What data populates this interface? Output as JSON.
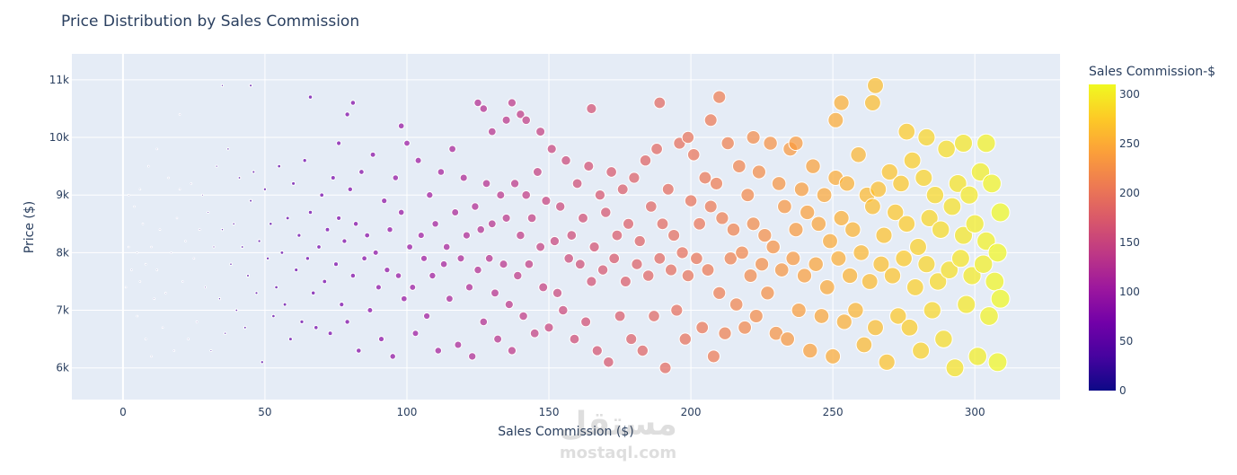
{
  "chart_data": {
    "type": "scatter",
    "title": "Price Distribution by Sales Commission",
    "xlabel": "Sales Commission ($)",
    "ylabel": "Price ($)",
    "xlim": [
      -18,
      330
    ],
    "ylim": [
      5450,
      11450
    ],
    "x_ticks": [
      0,
      50,
      100,
      150,
      200,
      250,
      300
    ],
    "y_ticks": [
      {
        "value": 6000,
        "label": "6k"
      },
      {
        "value": 7000,
        "label": "7k"
      },
      {
        "value": 8000,
        "label": "8k"
      },
      {
        "value": 9000,
        "label": "9k"
      },
      {
        "value": 10000,
        "label": "10k"
      },
      {
        "value": 11000,
        "label": "11k"
      }
    ],
    "grid": true,
    "colorscale_name": "Plasma",
    "colorscale": [
      "#0d0887",
      "#46039f",
      "#7201a8",
      "#9c179e",
      "#bd3786",
      "#d8576b",
      "#ed7953",
      "#fb9f3a",
      "#fdca26",
      "#f0f921"
    ],
    "colorbar": {
      "title": "Sales Commission-$",
      "range": [
        0,
        310
      ],
      "ticks": [
        0,
        50,
        100,
        150,
        200,
        250,
        300
      ]
    },
    "marker_size_encodes": "Sales Commission",
    "points": [
      [
        1,
        7400
      ],
      [
        2,
        8100
      ],
      [
        2,
        9000
      ],
      [
        3,
        7700
      ],
      [
        4,
        8800
      ],
      [
        5,
        6900
      ],
      [
        5,
        8000
      ],
      [
        6,
        9100
      ],
      [
        6,
        7500
      ],
      [
        7,
        8500
      ],
      [
        8,
        7800
      ],
      [
        8,
        6500
      ],
      [
        9,
        9500
      ],
      [
        10,
        6200
      ],
      [
        10,
        8100
      ],
      [
        11,
        7200
      ],
      [
        12,
        9800
      ],
      [
        12,
        7700
      ],
      [
        13,
        8400
      ],
      [
        14,
        6700
      ],
      [
        15,
        7300
      ],
      [
        16,
        9300
      ],
      [
        17,
        8000
      ],
      [
        18,
        6300
      ],
      [
        19,
        8600
      ],
      [
        20,
        9100
      ],
      [
        20,
        10400
      ],
      [
        21,
        7500
      ],
      [
        22,
        8200
      ],
      [
        23,
        6500
      ],
      [
        24,
        9200
      ],
      [
        25,
        7900
      ],
      [
        26,
        6800
      ],
      [
        27,
        8400
      ],
      [
        28,
        9000
      ],
      [
        29,
        7400
      ],
      [
        30,
        8700
      ],
      [
        31,
        6300
      ],
      [
        32,
        8100
      ],
      [
        33,
        9500
      ],
      [
        34,
        7200
      ],
      [
        35,
        10900
      ],
      [
        35,
        8400
      ],
      [
        36,
        6600
      ],
      [
        37,
        9800
      ],
      [
        38,
        7800
      ],
      [
        39,
        8500
      ],
      [
        40,
        7000
      ],
      [
        41,
        9300
      ],
      [
        42,
        8100
      ],
      [
        43,
        6700
      ],
      [
        44,
        7600
      ],
      [
        45,
        10900
      ],
      [
        45,
        8900
      ],
      [
        46,
        9400
      ],
      [
        47,
        7300
      ],
      [
        48,
        8200
      ],
      [
        49,
        6100
      ],
      [
        50,
        9100
      ],
      [
        51,
        7900
      ],
      [
        52,
        8500
      ],
      [
        53,
        6900
      ],
      [
        54,
        7400
      ],
      [
        55,
        9500
      ],
      [
        56,
        8000
      ],
      [
        57,
        7100
      ],
      [
        58,
        8600
      ],
      [
        59,
        6500
      ],
      [
        60,
        9200
      ],
      [
        61,
        7700
      ],
      [
        62,
        8300
      ],
      [
        63,
        6800
      ],
      [
        64,
        9600
      ],
      [
        65,
        7900
      ],
      [
        66,
        10700
      ],
      [
        66,
        8700
      ],
      [
        67,
        7300
      ],
      [
        68,
        6700
      ],
      [
        69,
        8100
      ],
      [
        70,
        9000
      ],
      [
        71,
        7500
      ],
      [
        72,
        8400
      ],
      [
        73,
        6600
      ],
      [
        74,
        9300
      ],
      [
        75,
        7800
      ],
      [
        76,
        9900
      ],
      [
        76,
        8600
      ],
      [
        77,
        7100
      ],
      [
        78,
        8200
      ],
      [
        79,
        10400
      ],
      [
        79,
        6800
      ],
      [
        80,
        9100
      ],
      [
        81,
        10600
      ],
      [
        81,
        7600
      ],
      [
        82,
        8500
      ],
      [
        83,
        6300
      ],
      [
        84,
        9400
      ],
      [
        85,
        7900
      ],
      [
        86,
        8300
      ],
      [
        87,
        7000
      ],
      [
        88,
        9700
      ],
      [
        89,
        8000
      ],
      [
        90,
        7400
      ],
      [
        91,
        6500
      ],
      [
        92,
        8900
      ],
      [
        93,
        7700
      ],
      [
        94,
        8400
      ],
      [
        95,
        6200
      ],
      [
        96,
        9300
      ],
      [
        97,
        7600
      ],
      [
        98,
        10200
      ],
      [
        98,
        8700
      ],
      [
        99,
        7200
      ],
      [
        100,
        9900
      ],
      [
        101,
        8100
      ],
      [
        102,
        7400
      ],
      [
        103,
        6600
      ],
      [
        104,
        9600
      ],
      [
        105,
        8300
      ],
      [
        106,
        7900
      ],
      [
        107,
        6900
      ],
      [
        108,
        9000
      ],
      [
        109,
        7600
      ],
      [
        110,
        8500
      ],
      [
        111,
        6300
      ],
      [
        112,
        9400
      ],
      [
        113,
        7800
      ],
      [
        114,
        8100
      ],
      [
        115,
        7200
      ],
      [
        116,
        9800
      ],
      [
        117,
        8700
      ],
      [
        118,
        6400
      ],
      [
        119,
        7900
      ],
      [
        120,
        9300
      ],
      [
        121,
        8300
      ],
      [
        122,
        7400
      ],
      [
        123,
        6200
      ],
      [
        124,
        8800
      ],
      [
        125,
        10600
      ],
      [
        125,
        7700
      ],
      [
        126,
        8400
      ],
      [
        127,
        10500
      ],
      [
        127,
        6800
      ],
      [
        128,
        9200
      ],
      [
        129,
        7900
      ],
      [
        130,
        10100
      ],
      [
        130,
        8500
      ],
      [
        131,
        7300
      ],
      [
        132,
        6500
      ],
      [
        133,
        9000
      ],
      [
        134,
        7800
      ],
      [
        135,
        10300
      ],
      [
        135,
        8600
      ],
      [
        136,
        7100
      ],
      [
        137,
        10600
      ],
      [
        137,
        6300
      ],
      [
        138,
        9200
      ],
      [
        139,
        7600
      ],
      [
        140,
        10400
      ],
      [
        140,
        8300
      ],
      [
        141,
        6900
      ],
      [
        142,
        10300
      ],
      [
        142,
        9000
      ],
      [
        143,
        7800
      ],
      [
        144,
        8600
      ],
      [
        145,
        6600
      ],
      [
        146,
        9400
      ],
      [
        147,
        10100
      ],
      [
        147,
        8100
      ],
      [
        148,
        7400
      ],
      [
        149,
        8900
      ],
      [
        150,
        6700
      ],
      [
        151,
        9800
      ],
      [
        152,
        8200
      ],
      [
        153,
        7300
      ],
      [
        154,
        8800
      ],
      [
        155,
        7000
      ],
      [
        156,
        9600
      ],
      [
        157,
        7900
      ],
      [
        158,
        8300
      ],
      [
        159,
        6500
      ],
      [
        160,
        9200
      ],
      [
        161,
        7800
      ],
      [
        162,
        8600
      ],
      [
        163,
        6800
      ],
      [
        164,
        9500
      ],
      [
        165,
        10500
      ],
      [
        165,
        7500
      ],
      [
        166,
        8100
      ],
      [
        167,
        6300
      ],
      [
        168,
        9000
      ],
      [
        169,
        7700
      ],
      [
        170,
        8700
      ],
      [
        171,
        6100
      ],
      [
        172,
        9400
      ],
      [
        173,
        7900
      ],
      [
        174,
        8300
      ],
      [
        175,
        6900
      ],
      [
        176,
        9100
      ],
      [
        177,
        7500
      ],
      [
        178,
        8500
      ],
      [
        179,
        6500
      ],
      [
        180,
        9300
      ],
      [
        181,
        7800
      ],
      [
        182,
        8200
      ],
      [
        183,
        6300
      ],
      [
        184,
        9600
      ],
      [
        185,
        7600
      ],
      [
        186,
        8800
      ],
      [
        187,
        6900
      ],
      [
        188,
        9800
      ],
      [
        189,
        10600
      ],
      [
        189,
        7900
      ],
      [
        190,
        8500
      ],
      [
        191,
        6000
      ],
      [
        192,
        9100
      ],
      [
        193,
        7700
      ],
      [
        194,
        8300
      ],
      [
        195,
        7000
      ],
      [
        196,
        9900
      ],
      [
        197,
        8000
      ],
      [
        198,
        6500
      ],
      [
        199,
        10000
      ],
      [
        199,
        7600
      ],
      [
        200,
        8900
      ],
      [
        201,
        9700
      ],
      [
        202,
        7900
      ],
      [
        203,
        8500
      ],
      [
        204,
        6700
      ],
      [
        205,
        9300
      ],
      [
        206,
        7700
      ],
      [
        207,
        10300
      ],
      [
        207,
        8800
      ],
      [
        208,
        6200
      ],
      [
        209,
        9200
      ],
      [
        210,
        10700
      ],
      [
        210,
        7300
      ],
      [
        211,
        8600
      ],
      [
        212,
        6600
      ],
      [
        213,
        9900
      ],
      [
        214,
        7900
      ],
      [
        215,
        8400
      ],
      [
        216,
        7100
      ],
      [
        217,
        9500
      ],
      [
        218,
        8000
      ],
      [
        219,
        6700
      ],
      [
        220,
        9000
      ],
      [
        221,
        7600
      ],
      [
        222,
        10000
      ],
      [
        222,
        8500
      ],
      [
        223,
        6900
      ],
      [
        224,
        9400
      ],
      [
        225,
        7800
      ],
      [
        226,
        8300
      ],
      [
        227,
        7300
      ],
      [
        228,
        9900
      ],
      [
        229,
        8100
      ],
      [
        230,
        6600
      ],
      [
        231,
        9200
      ],
      [
        232,
        7700
      ],
      [
        233,
        8800
      ],
      [
        234,
        6500
      ],
      [
        235,
        9800
      ],
      [
        236,
        7900
      ],
      [
        237,
        9900
      ],
      [
        237,
        8400
      ],
      [
        238,
        7000
      ],
      [
        239,
        9100
      ],
      [
        240,
        7600
      ],
      [
        241,
        8700
      ],
      [
        242,
        6300
      ],
      [
        243,
        9500
      ],
      [
        244,
        7800
      ],
      [
        245,
        8500
      ],
      [
        246,
        6900
      ],
      [
        247,
        9000
      ],
      [
        248,
        7400
      ],
      [
        249,
        8200
      ],
      [
        250,
        6200
      ],
      [
        251,
        10300
      ],
      [
        251,
        9300
      ],
      [
        252,
        7900
      ],
      [
        253,
        10600
      ],
      [
        253,
        8600
      ],
      [
        254,
        6800
      ],
      [
        255,
        9200
      ],
      [
        256,
        7600
      ],
      [
        257,
        8400
      ],
      [
        258,
        7000
      ],
      [
        259,
        9700
      ],
      [
        260,
        8000
      ],
      [
        261,
        6400
      ],
      [
        262,
        9000
      ],
      [
        263,
        7500
      ],
      [
        264,
        10600
      ],
      [
        264,
        8800
      ],
      [
        265,
        10900
      ],
      [
        265,
        6700
      ],
      [
        266,
        9100
      ],
      [
        267,
        7800
      ],
      [
        268,
        8300
      ],
      [
        269,
        6100
      ],
      [
        270,
        9400
      ],
      [
        271,
        7600
      ],
      [
        272,
        8700
      ],
      [
        273,
        6900
      ],
      [
        274,
        9200
      ],
      [
        275,
        7900
      ],
      [
        276,
        10100
      ],
      [
        276,
        8500
      ],
      [
        277,
        6700
      ],
      [
        278,
        9600
      ],
      [
        279,
        7400
      ],
      [
        280,
        8100
      ],
      [
        281,
        6300
      ],
      [
        282,
        9300
      ],
      [
        283,
        10000
      ],
      [
        283,
        7800
      ],
      [
        284,
        8600
      ],
      [
        285,
        7000
      ],
      [
        286,
        9000
      ],
      [
        287,
        7500
      ],
      [
        288,
        8400
      ],
      [
        289,
        6500
      ],
      [
        290,
        9800
      ],
      [
        291,
        7700
      ],
      [
        292,
        8800
      ],
      [
        293,
        6000
      ],
      [
        294,
        9200
      ],
      [
        295,
        7900
      ],
      [
        296,
        9900
      ],
      [
        296,
        8300
      ],
      [
        297,
        7100
      ],
      [
        298,
        9000
      ],
      [
        299,
        7600
      ],
      [
        300,
        8500
      ],
      [
        301,
        6200
      ],
      [
        302,
        9400
      ],
      [
        303,
        7800
      ],
      [
        304,
        9900
      ],
      [
        304,
        8200
      ],
      [
        305,
        6900
      ],
      [
        306,
        9200
      ],
      [
        307,
        7500
      ],
      [
        308,
        8000
      ],
      [
        308,
        6100
      ],
      [
        309,
        8700
      ],
      [
        309,
        7200
      ]
    ],
    "watermark": {
      "text": "مستقل",
      "caption": "mostaql.com"
    }
  }
}
